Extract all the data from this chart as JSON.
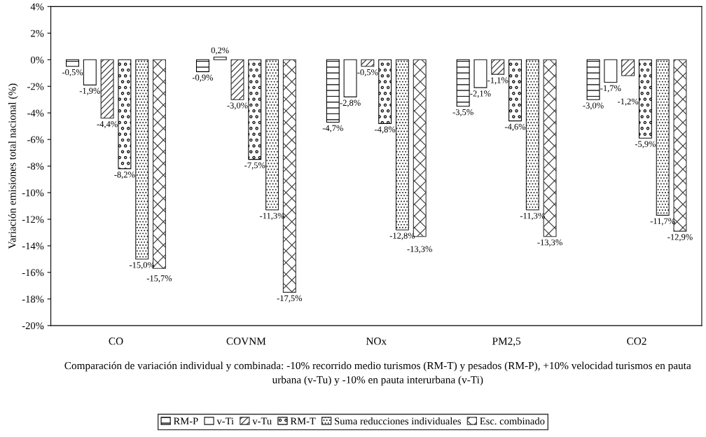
{
  "chart_data": {
    "type": "bar",
    "ylabel": "Variación emisiones total nacional (%)",
    "xlabel": "Comparación de variación individual y combinada: -10% recorrido medio turismos (RM-T) y pesados (RM-P), +10% velocidad turismos en pauta urbana (v-Tu) y -10% en pauta interurbana (v-Ti)",
    "categories": [
      "CO",
      "COVNM",
      "NOx",
      "PM2,5",
      "CO2"
    ],
    "series": [
      {
        "name": "RM-P",
        "color": "#000000",
        "values": [
          -0.5,
          -0.9,
          -4.7,
          -3.5,
          -3.0
        ],
        "value_labels": [
          "-0,5%",
          "-0,9%",
          "-4,7%",
          "-3,5%",
          "-3,0%"
        ]
      },
      {
        "name": "v-Ti",
        "color": "#141414",
        "values": [
          -1.9,
          0.2,
          -2.8,
          -2.1,
          -1.7
        ],
        "value_labels": [
          "-1,9%",
          "0,2%",
          "-2,8%",
          "-2,1%",
          "-1,7%"
        ]
      },
      {
        "name": "v-Tu",
        "color": "#282828",
        "values": [
          -4.4,
          -3.0,
          -0.5,
          -1.1,
          -1.2
        ],
        "value_labels": [
          "-4,4%",
          "-3,0%",
          "-0,5%",
          "-1,1%",
          "-1,2%"
        ]
      },
      {
        "name": "RM-T",
        "color": "#0a0a0a",
        "values": [
          -8.2,
          -7.5,
          -4.8,
          -4.6,
          -5.9
        ],
        "value_labels": [
          "-8,2%",
          "-7,5%",
          "-4,8%",
          "-4,6%",
          "-5,9%"
        ]
      },
      {
        "name": "Suma reducciones individuales",
        "color": "#1e1e1e",
        "values": [
          -15.0,
          -11.3,
          -12.8,
          -11.3,
          -11.7
        ],
        "value_labels": [
          "-15,0%",
          "-11,3%",
          "-12,8%",
          "-11,3%",
          "-11,7%"
        ]
      },
      {
        "name": "Esc. combinado",
        "color": "#323232",
        "values": [
          -15.7,
          -17.5,
          -13.3,
          -13.3,
          -12.9
        ],
        "value_labels": [
          "-15,7%",
          "-17,5%",
          "-13,3%",
          "-13,3%",
          "-12,9%"
        ]
      }
    ],
    "ylim": [
      -20,
      4
    ],
    "yticks": [
      {
        "value": -20,
        "label": "-20%"
      },
      {
        "value": -18,
        "label": "-18%"
      },
      {
        "value": -16,
        "label": "-16%"
      },
      {
        "value": -14,
        "label": "-14%"
      },
      {
        "value": -12,
        "label": "-12%"
      },
      {
        "value": -10,
        "label": "-10%"
      },
      {
        "value": -8,
        "label": "-8%"
      },
      {
        "value": -6,
        "label": "-6%"
      },
      {
        "value": -4,
        "label": "-4%"
      },
      {
        "value": -2,
        "label": "-2%"
      },
      {
        "value": 0,
        "label": "0%"
      },
      {
        "value": 2,
        "label": "2%"
      },
      {
        "value": 4,
        "label": "4%"
      }
    ],
    "grid": false,
    "legend": "bottom"
  }
}
